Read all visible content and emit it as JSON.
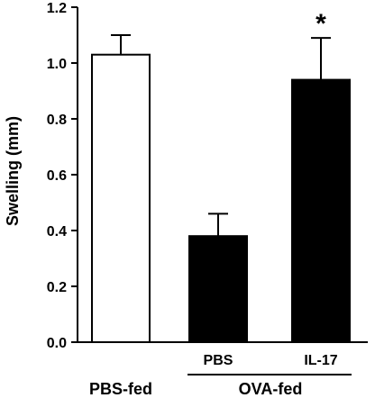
{
  "chart_data": {
    "type": "bar",
    "ylabel": "Swelling (mm)",
    "ylim": [
      0,
      1.2
    ],
    "yticks": [
      "0.0",
      "0.2",
      "0.4",
      "0.6",
      "0.8",
      "1.0",
      "1.2"
    ],
    "categories": [
      "PBS-fed",
      "PBS",
      "IL-17"
    ],
    "values": [
      1.03,
      0.38,
      0.94
    ],
    "errors": [
      0.07,
      0.08,
      0.15
    ],
    "bar_colors": [
      "#ffffff",
      "#000000",
      "#000000"
    ],
    "significance": [
      "",
      "",
      "*"
    ],
    "group_label": "OVA-fed",
    "group_members": [
      "PBS",
      "IL-17"
    ]
  }
}
